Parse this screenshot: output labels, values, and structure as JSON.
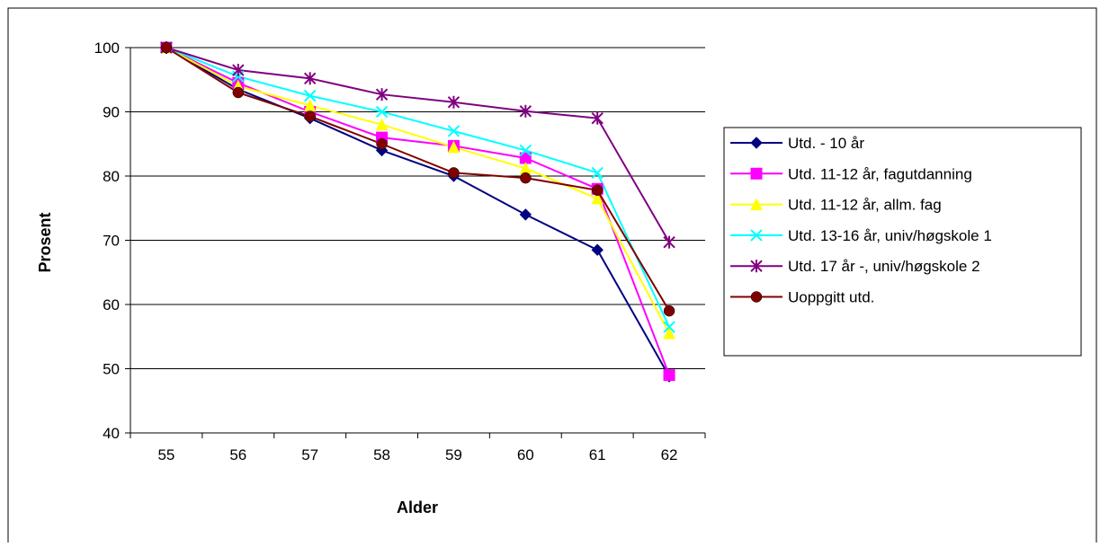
{
  "chart_data": {
    "type": "line",
    "title": "",
    "xlabel": "Alder",
    "ylabel": "Prosent",
    "categories": [
      "55",
      "56",
      "57",
      "58",
      "59",
      "60",
      "61",
      "62"
    ],
    "ylim": [
      40,
      100
    ],
    "yticks": [
      40,
      50,
      60,
      70,
      80,
      90,
      100
    ],
    "grid": true,
    "legend_position": "right",
    "series": [
      {
        "name": "Utd. - 10 år",
        "color": "#000080",
        "marker": "diamond",
        "values": [
          100,
          93.5,
          89,
          84,
          80,
          74,
          68.5,
          48.8
        ]
      },
      {
        "name": "Utd. 11-12 år, fagutdanning",
        "color": "#FF00FF",
        "marker": "square",
        "values": [
          100,
          94.5,
          90,
          86,
          84.7,
          82.8,
          78,
          49
        ]
      },
      {
        "name": "Utd. 11-12 år, allm. fag",
        "color": "#FFFF00",
        "marker": "triangle",
        "values": [
          100,
          94,
          91,
          88,
          84.5,
          81.2,
          76.5,
          55.5
        ]
      },
      {
        "name": "Utd. 13-16 år, univ/høgskole 1",
        "color": "#00FFFF",
        "marker": "x",
        "values": [
          100,
          95.5,
          92.5,
          90,
          87,
          84,
          80.5,
          56.5
        ]
      },
      {
        "name": "Utd. 17 år -, univ/høgskole 2",
        "color": "#800080",
        "marker": "star",
        "values": [
          100,
          96.5,
          95.2,
          92.7,
          91.5,
          90.1,
          89,
          69.7
        ]
      },
      {
        "name": "Uoppgitt utd.",
        "color": "#800000",
        "marker": "circle",
        "values": [
          100,
          93,
          89.3,
          85,
          80.5,
          79.7,
          77.8,
          59
        ]
      }
    ]
  }
}
